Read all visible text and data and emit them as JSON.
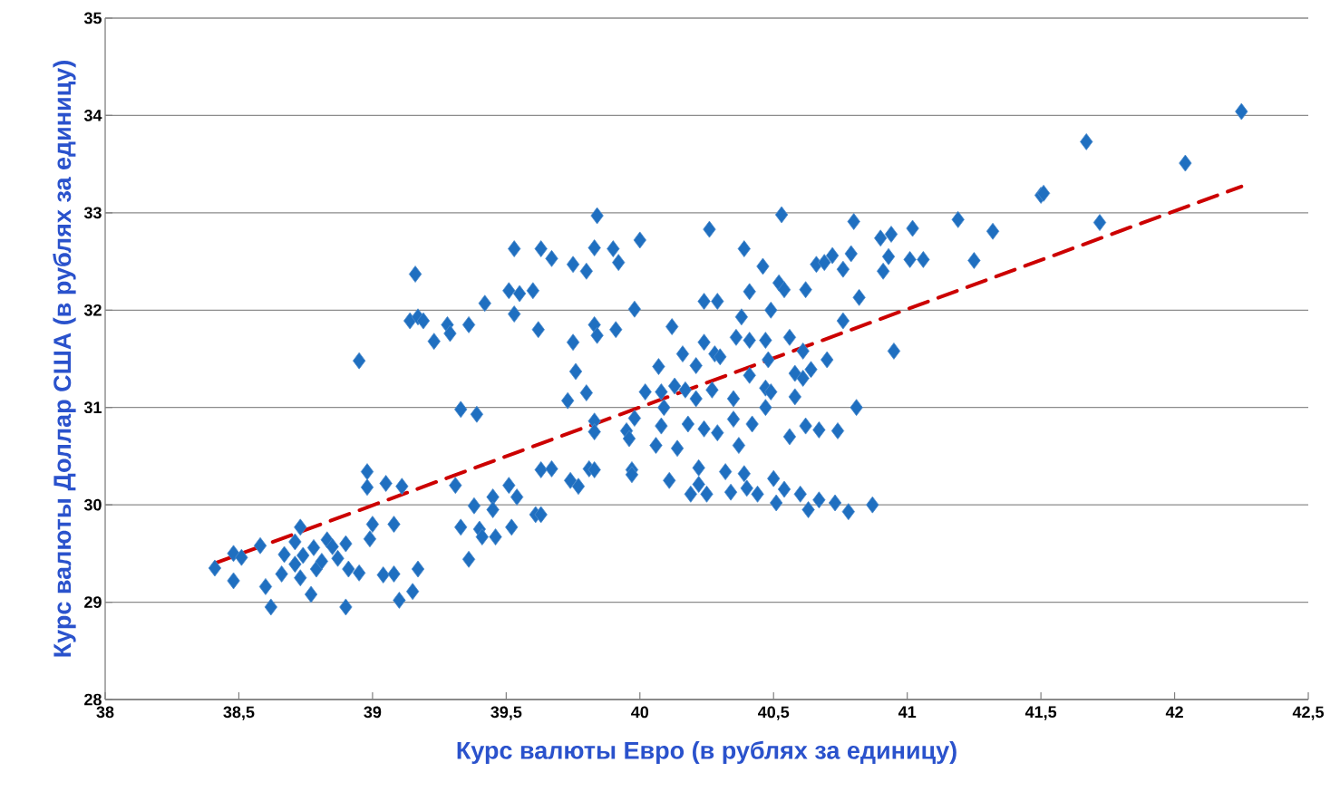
{
  "chart_data": {
    "type": "scatter",
    "xlabel": "Курс валюты Евро (в рублях за единицу)",
    "ylabel": "Курс валюты Доллар США (в рублях за единицу)",
    "xlim": [
      38,
      42.5
    ],
    "ylim": [
      28,
      35
    ],
    "xticks": [
      38,
      {
        "value": 38.5,
        "label": "38,5"
      },
      39,
      {
        "value": 39.5,
        "label": "39,5"
      },
      40,
      {
        "value": 40.5,
        "label": "40,5"
      },
      41,
      {
        "value": 41.5,
        "label": "41,5"
      },
      42,
      {
        "value": 42.5,
        "label": "42,5"
      }
    ],
    "yticks": [
      28,
      29,
      30,
      31,
      32,
      33,
      34,
      35
    ],
    "grid": "y",
    "series": [
      {
        "color": "#1f6fc0",
        "marker": "diamond",
        "x": [
          38.41,
          38.48,
          38.48,
          38.51,
          38.58,
          38.6,
          38.62,
          38.66,
          38.67,
          38.71,
          38.73,
          38.71,
          38.73,
          38.74,
          38.77,
          38.78,
          38.79,
          38.81,
          38.83,
          38.85,
          38.87,
          38.9,
          38.91,
          38.9,
          38.95,
          38.95,
          38.98,
          38.98,
          39.0,
          38.99,
          39.04,
          39.05,
          39.08,
          39.08,
          39.1,
          39.11,
          39.15,
          39.17,
          39.14,
          39.16,
          39.17,
          39.19,
          39.23,
          39.28,
          39.29,
          39.31,
          39.33,
          39.33,
          39.36,
          39.36,
          39.39,
          39.38,
          39.4,
          39.42,
          39.41,
          39.45,
          39.46,
          39.45,
          39.51,
          39.51,
          39.52,
          39.53,
          39.53,
          39.54,
          39.55,
          39.6,
          39.62,
          39.61,
          39.63,
          39.63,
          39.67,
          39.63,
          39.67,
          39.73,
          39.74,
          39.75,
          39.75,
          39.76,
          39.77,
          39.8,
          39.8,
          39.81,
          39.83,
          39.84,
          39.83,
          39.84,
          39.83,
          39.83,
          39.83,
          39.9,
          39.91,
          39.92,
          39.95,
          39.96,
          39.97,
          39.97,
          39.98,
          39.98,
          40.0,
          40.02,
          40.06,
          40.07,
          40.08,
          40.08,
          40.09,
          40.11,
          40.12,
          40.13,
          40.14,
          40.16,
          40.17,
          40.18,
          40.19,
          40.21,
          40.21,
          40.22,
          40.22,
          40.24,
          40.24,
          40.24,
          40.25,
          40.26,
          40.27,
          40.28,
          40.29,
          40.29,
          40.3,
          40.32,
          40.34,
          40.35,
          40.35,
          40.36,
          40.37,
          40.38,
          40.39,
          40.39,
          40.4,
          40.41,
          40.41,
          40.41,
          40.42,
          40.44,
          40.46,
          40.47,
          40.47,
          40.47,
          40.48,
          40.49,
          40.49,
          40.5,
          40.51,
          40.52,
          40.53,
          40.54,
          40.56,
          40.54,
          40.56,
          40.58,
          40.58,
          40.6,
          40.61,
          40.62,
          40.61,
          40.62,
          40.63,
          40.64,
          40.67,
          40.67,
          40.66,
          40.69,
          40.7,
          40.72,
          40.73,
          40.74,
          40.76,
          40.76,
          40.78,
          40.79,
          40.8,
          40.81,
          40.82,
          40.87,
          40.9,
          40.91,
          40.93,
          40.94,
          40.95,
          41.01,
          41.02,
          41.06,
          41.19,
          41.25,
          41.32,
          41.5,
          41.51,
          41.67,
          41.72,
          42.04,
          42.25
        ],
        "values": [
          29.35,
          29.5,
          29.22,
          29.46,
          29.58,
          29.16,
          28.95,
          29.29,
          29.49,
          29.62,
          29.77,
          29.39,
          29.25,
          29.48,
          29.08,
          29.56,
          29.34,
          29.42,
          29.64,
          29.57,
          29.45,
          29.6,
          29.34,
          28.95,
          29.3,
          31.48,
          30.34,
          30.18,
          29.8,
          29.65,
          29.28,
          30.22,
          29.8,
          29.29,
          29.02,
          30.19,
          29.11,
          29.34,
          31.89,
          32.37,
          31.93,
          31.89,
          31.68,
          31.85,
          31.76,
          30.2,
          29.77,
          30.98,
          31.85,
          29.44,
          30.93,
          29.99,
          29.75,
          32.07,
          29.67,
          30.08,
          29.67,
          29.95,
          32.2,
          30.2,
          29.77,
          32.63,
          31.96,
          30.08,
          32.17,
          32.2,
          31.8,
          29.9,
          29.9,
          30.36,
          30.37,
          32.63,
          32.53,
          31.07,
          30.25,
          32.47,
          31.67,
          31.37,
          30.19,
          32.4,
          31.15,
          30.37,
          32.64,
          32.97,
          31.85,
          31.74,
          30.86,
          30.75,
          30.36,
          32.63,
          31.8,
          32.49,
          30.76,
          30.68,
          30.36,
          30.31,
          32.01,
          30.89,
          32.72,
          31.16,
          30.61,
          31.42,
          31.16,
          30.81,
          31.0,
          30.25,
          31.83,
          31.22,
          30.58,
          31.55,
          31.18,
          30.83,
          30.11,
          31.43,
          31.09,
          30.21,
          30.38,
          31.67,
          32.09,
          30.78,
          30.11,
          32.83,
          31.18,
          31.55,
          32.09,
          30.74,
          31.52,
          30.34,
          30.13,
          31.09,
          30.88,
          31.72,
          30.61,
          31.93,
          32.63,
          30.32,
          30.17,
          31.69,
          31.33,
          32.19,
          30.83,
          30.11,
          32.45,
          31.2,
          31.69,
          31.0,
          31.49,
          32.0,
          31.16,
          30.27,
          30.02,
          32.28,
          32.98,
          32.21,
          31.72,
          30.16,
          30.7,
          31.11,
          31.35,
          30.11,
          31.3,
          32.21,
          31.58,
          30.81,
          29.95,
          31.39,
          30.77,
          30.05,
          32.47,
          32.49,
          31.49,
          32.56,
          30.02,
          30.76,
          31.89,
          32.42,
          29.93,
          32.58,
          32.91,
          31.0,
          32.13,
          30.0,
          32.74,
          32.4,
          32.55,
          32.78,
          31.58,
          32.52,
          32.84,
          32.52,
          32.93,
          32.51,
          32.81,
          33.18,
          33.2,
          33.73,
          32.9,
          33.51,
          34.04
        ]
      },
      {
        "type": "line",
        "color": "#cc0000",
        "marker": "none",
        "line_style": "dashed",
        "x": [
          38.41,
          42.25
        ],
        "values": [
          29.4,
          33.27
        ]
      }
    ]
  }
}
